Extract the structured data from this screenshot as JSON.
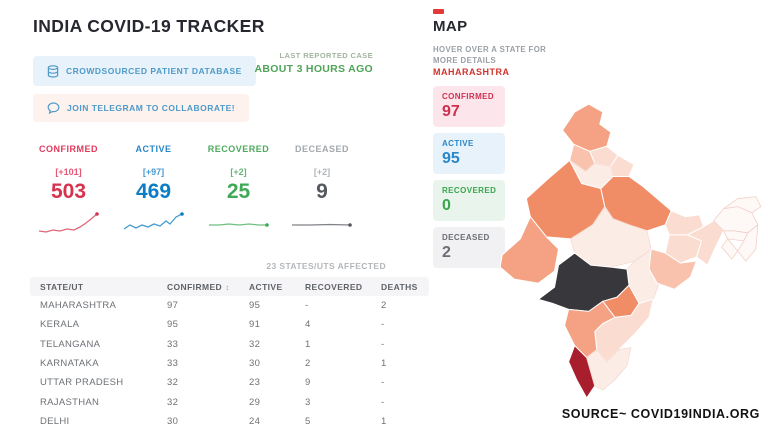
{
  "header": {
    "title": "INDIA COVID-19 TRACKER"
  },
  "buttons": {
    "database": "CROWDSOURCED PATIENT DATABASE",
    "telegram": "JOIN TELEGRAM TO COLLABORATE!"
  },
  "last_reported": {
    "label": "LAST REPORTED CASE",
    "value": "ABOUT 3 HOURS AGO"
  },
  "stats": [
    {
      "label": "CONFIRMED",
      "delta": "[+101]",
      "value": "503",
      "label_color": "#e23a5c",
      "value_color": "#d6334e",
      "spark": [
        [
          2,
          21
        ],
        [
          9,
          22
        ],
        [
          16,
          20
        ],
        [
          23,
          21
        ],
        [
          30,
          19
        ],
        [
          37,
          20
        ],
        [
          43,
          17
        ],
        [
          49,
          13
        ],
        [
          54,
          9
        ],
        [
          60,
          4
        ]
      ]
    },
    {
      "label": "ACTIVE",
      "delta": "[+97]",
      "value": "469",
      "label_color": "#2a87c8",
      "value_color": "#0b7dc6",
      "spark": [
        [
          2,
          19
        ],
        [
          8,
          15
        ],
        [
          14,
          18
        ],
        [
          20,
          15
        ],
        [
          26,
          17
        ],
        [
          32,
          14
        ],
        [
          38,
          16
        ],
        [
          44,
          11
        ],
        [
          48,
          14
        ],
        [
          54,
          7
        ],
        [
          60,
          4
        ]
      ]
    },
    {
      "label": "RECOVERED",
      "delta": "[+2]",
      "value": "25",
      "label_color": "#4cab5d",
      "value_color": "#3fa956",
      "spark": [
        [
          2,
          15
        ],
        [
          12,
          15
        ],
        [
          22,
          14
        ],
        [
          32,
          15
        ],
        [
          42,
          14
        ],
        [
          52,
          15
        ],
        [
          60,
          15
        ]
      ]
    },
    {
      "label": "DECEASED",
      "delta": "[+2]",
      "value": "9",
      "label_color": "#a3a8ad",
      "value_color": "#54585e",
      "spark": [
        [
          2,
          15
        ],
        [
          20,
          15
        ],
        [
          40,
          14.5
        ],
        [
          60,
          15
        ]
      ]
    }
  ],
  "table": {
    "affected_note": "23 STATES/UTS AFFECTED",
    "sort_glyph": "↕",
    "headers": [
      "STATE/UT",
      "CONFIRMED",
      "ACTIVE",
      "RECOVERED",
      "DEATHS"
    ],
    "rows": [
      [
        "MAHARASHTRA",
        "97",
        "95",
        "-",
        "2"
      ],
      [
        "KERALA",
        "95",
        "91",
        "4",
        "-"
      ],
      [
        "TELANGANA",
        "33",
        "32",
        "1",
        "-"
      ],
      [
        "KARNATAKA",
        "33",
        "30",
        "2",
        "1"
      ],
      [
        "UTTAR PRADESH",
        "32",
        "23",
        "9",
        "-"
      ],
      [
        "RAJASTHAN",
        "32",
        "29",
        "3",
        "-"
      ],
      [
        "DELHI",
        "30",
        "24",
        "5",
        "1"
      ]
    ]
  },
  "map_panel": {
    "title": "MAP",
    "hint_line1": "HOVER OVER A STATE FOR",
    "hint_line2": "MORE DETAILS",
    "selected_state": "MAHARASHTRA",
    "boxes": [
      {
        "label": "CONFIRMED",
        "value": "97",
        "bg": "#fce6ec",
        "color": "#cf3050"
      },
      {
        "label": "ACTIVE",
        "value": "95",
        "bg": "#e7f2fb",
        "color": "#2a87c8"
      },
      {
        "label": "RECOVERED",
        "value": "0",
        "bg": "#e9f5ec",
        "color": "#3aa54d"
      },
      {
        "label": "DECEASED",
        "value": "2",
        "bg": "#f1f1f3",
        "color": "#6a6f74"
      }
    ]
  },
  "map": {
    "palette": {
      "s0": "#fcece6",
      "s1": "#fbdcd0",
      "s2": "#f8c2ac",
      "s3": "#f4a283",
      "s4": "#f08d67",
      "kerala": "#a81e2d",
      "selected": "#37373c",
      "ne": "#fef8f6"
    }
  },
  "source": "SOURCE~ COVID19INDIA.ORG"
}
